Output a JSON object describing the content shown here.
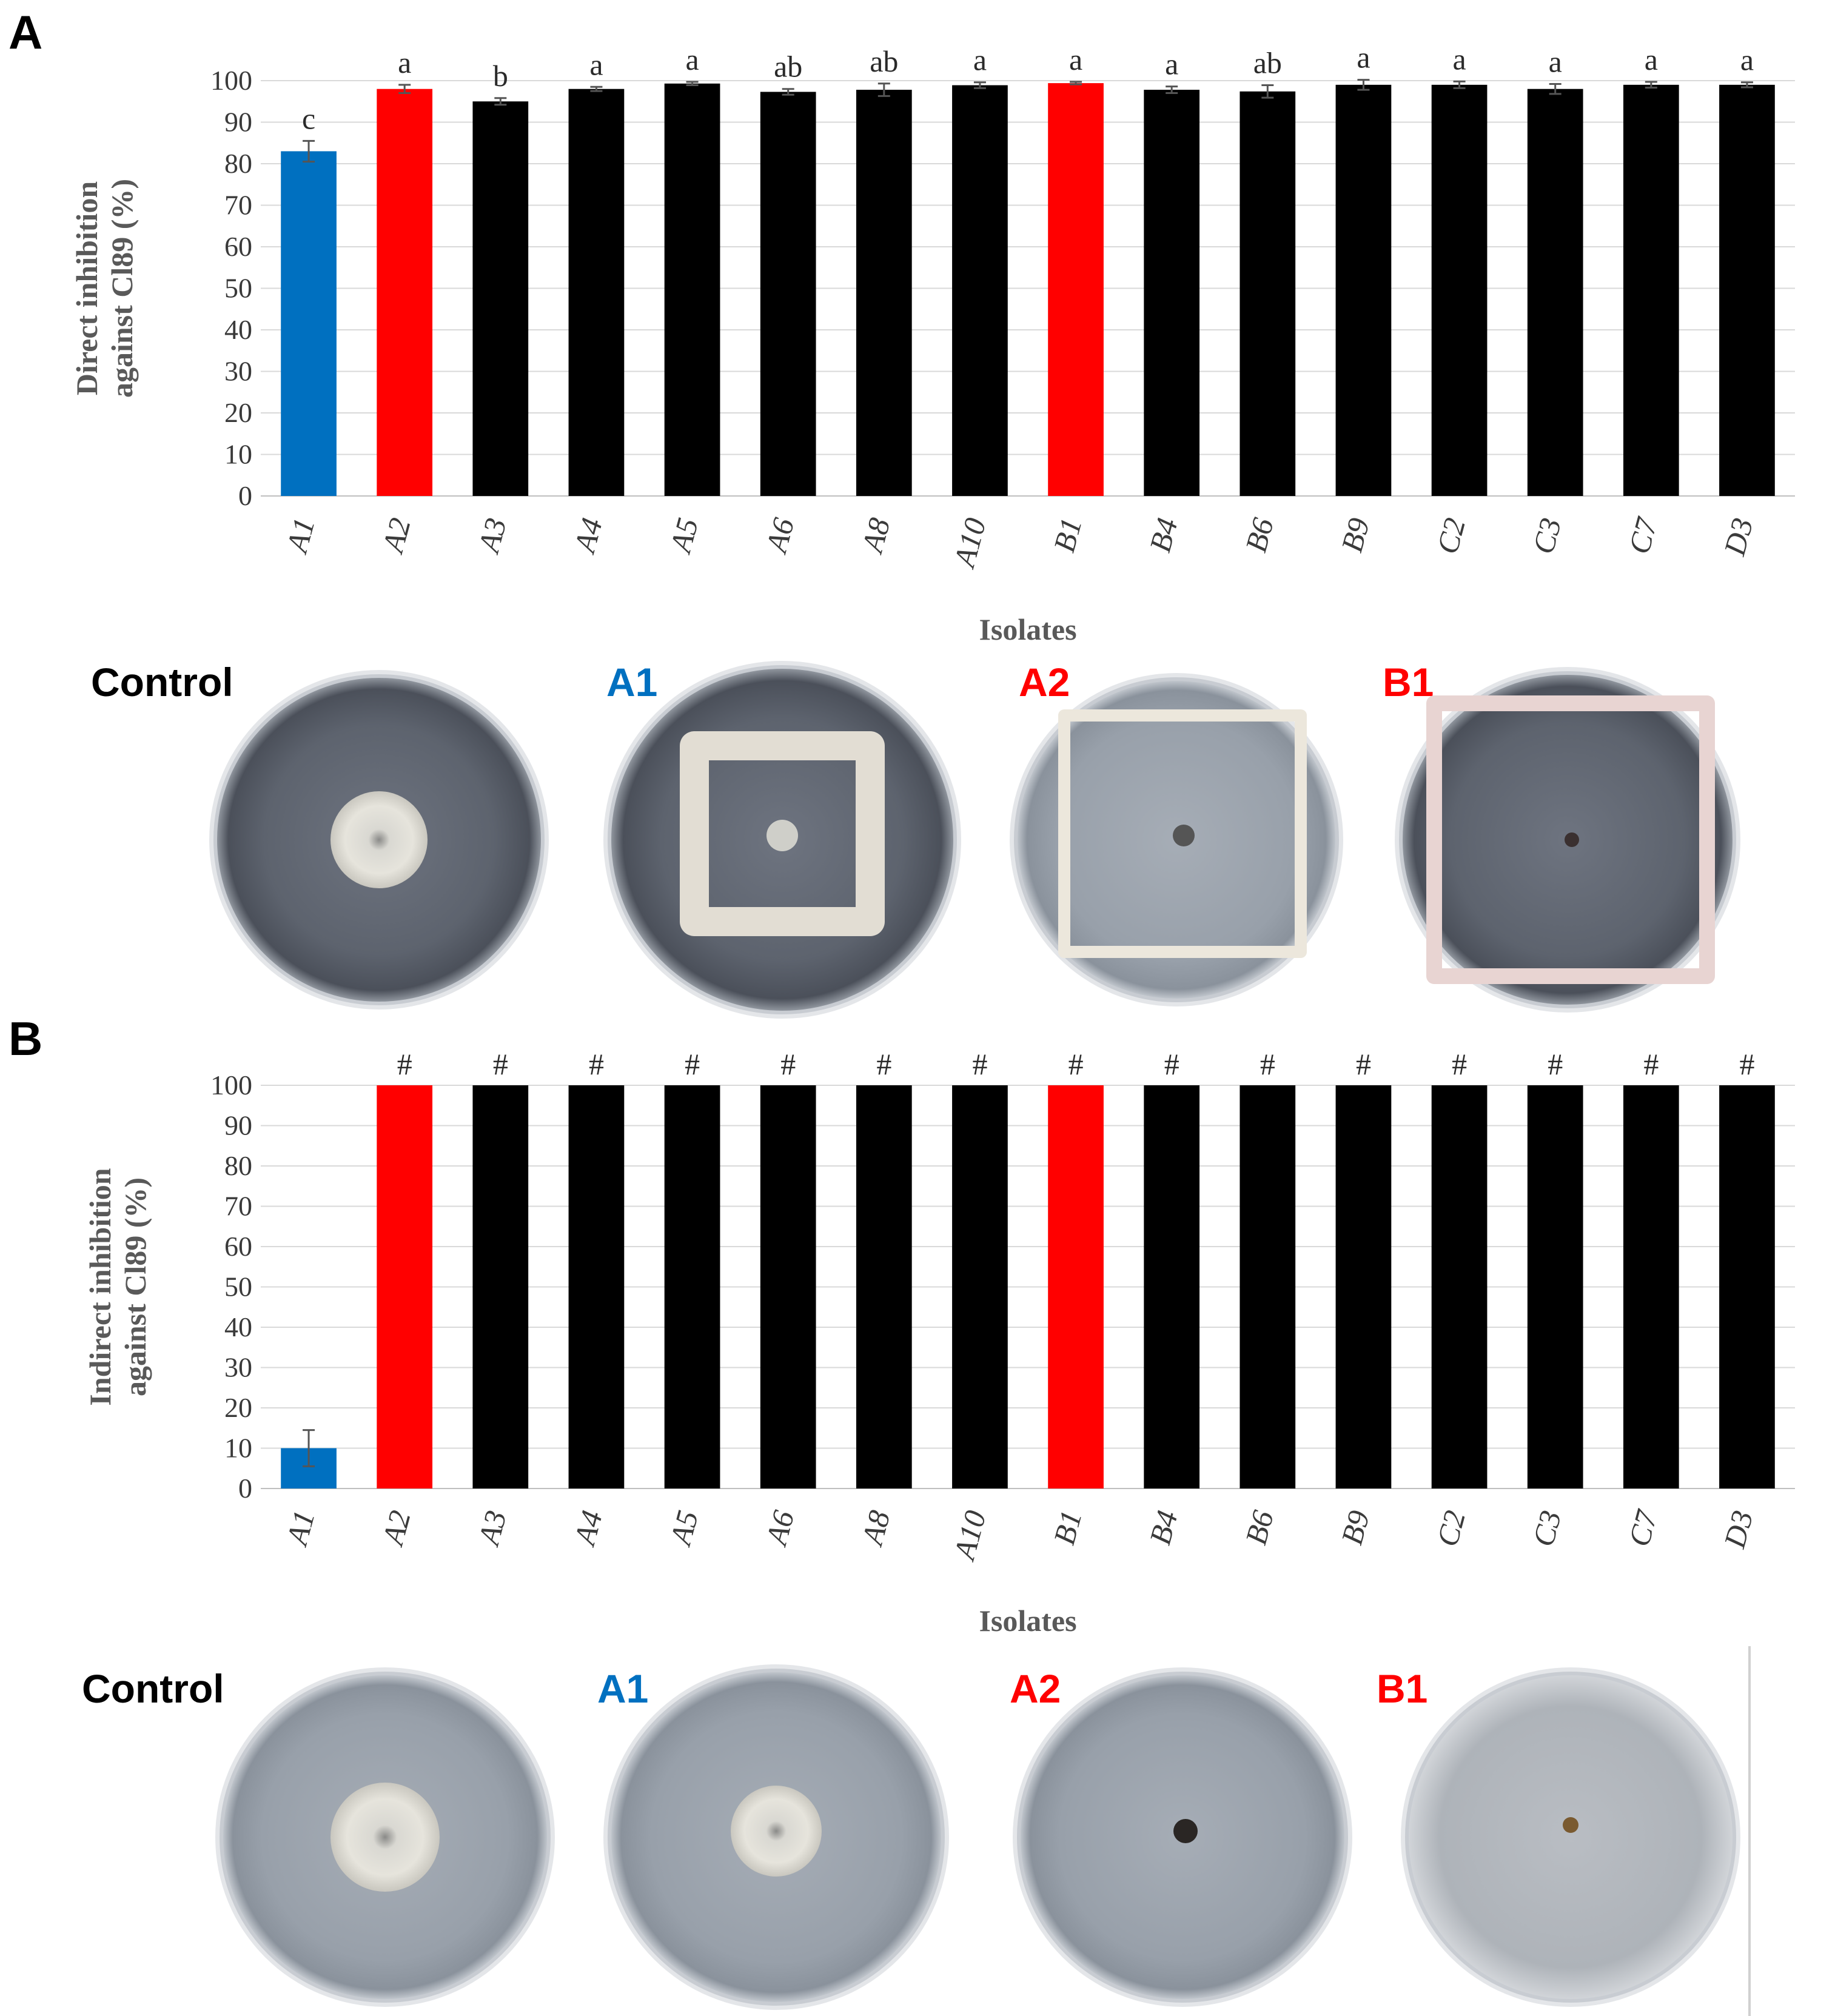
{
  "colors": {
    "blue": "#0070c0",
    "red": "#ff0000",
    "black": "#000000"
  },
  "panels": [
    {
      "letter": "A",
      "photo_labels": [
        "Control",
        "A1",
        "A2",
        "B1"
      ],
      "photo_label_colors": [
        "#000000",
        "#0070c0",
        "#ff0000",
        "#ff0000"
      ]
    },
    {
      "letter": "B",
      "photo_labels": [
        "Control",
        "A1",
        "A2",
        "B1"
      ],
      "photo_label_colors": [
        "#000000",
        "#0070c0",
        "#ff0000",
        "#ff0000"
      ]
    }
  ],
  "chart_data": [
    {
      "type": "bar",
      "ylabel_line1": "Direct inhibition",
      "ylabel_line2": "against Cl89 (%)",
      "xlabel": "Isolates",
      "ylim": [
        0,
        100
      ],
      "yticks": [
        0,
        10,
        20,
        30,
        40,
        50,
        60,
        70,
        80,
        90,
        100
      ],
      "grid": true,
      "categories": [
        "A1",
        "A2",
        "A3",
        "A4",
        "A5",
        "A6",
        "A8",
        "A10",
        "B1",
        "B4",
        "B6",
        "B9",
        "C2",
        "C3",
        "C7",
        "D3"
      ],
      "values": [
        83,
        98,
        95,
        98,
        99.3,
        97.3,
        97.8,
        98.9,
        99.4,
        97.8,
        97.4,
        99,
        99,
        98,
        99,
        99
      ],
      "errors": [
        2.5,
        1,
        0.8,
        0.5,
        0.4,
        0.7,
        1.5,
        0.7,
        0.3,
        0.8,
        1.5,
        1.2,
        0.8,
        1.2,
        0.7,
        0.6
      ],
      "labels": [
        "c",
        "a",
        "b",
        "a",
        "a",
        "ab",
        "ab",
        "a",
        "a",
        "a",
        "ab",
        "a",
        "a",
        "a",
        "a",
        "a"
      ],
      "bar_colors": [
        "#0070c0",
        "#ff0000",
        "#000000",
        "#000000",
        "#000000",
        "#000000",
        "#000000",
        "#000000",
        "#ff0000",
        "#000000",
        "#000000",
        "#000000",
        "#000000",
        "#000000",
        "#000000",
        "#000000"
      ]
    },
    {
      "type": "bar",
      "ylabel_line1": "Indirect inhibition",
      "ylabel_line2": "against Cl89 (%)",
      "xlabel": "Isolates",
      "ylim": [
        0,
        100
      ],
      "yticks": [
        0,
        10,
        20,
        30,
        40,
        50,
        60,
        70,
        80,
        90,
        100
      ],
      "grid": true,
      "categories": [
        "A1",
        "A2",
        "A3",
        "A4",
        "A5",
        "A6",
        "A8",
        "A10",
        "B1",
        "B4",
        "B6",
        "B9",
        "C2",
        "C3",
        "C7",
        "D3"
      ],
      "values": [
        10,
        100,
        100,
        100,
        100,
        100,
        100,
        100,
        100,
        100,
        100,
        100,
        100,
        100,
        100,
        100
      ],
      "errors": [
        4.5,
        0,
        0,
        0,
        0,
        0,
        0,
        0,
        0,
        0,
        0,
        0,
        0,
        0,
        0,
        0
      ],
      "labels": [
        "",
        "#",
        "#",
        "#",
        "#",
        "#",
        "#",
        "#",
        "#",
        "#",
        "#",
        "#",
        "#",
        "#",
        "#",
        "#"
      ],
      "bar_colors": [
        "#0070c0",
        "#ff0000",
        "#000000",
        "#000000",
        "#000000",
        "#000000",
        "#000000",
        "#000000",
        "#ff0000",
        "#000000",
        "#000000",
        "#000000",
        "#000000",
        "#000000",
        "#000000",
        "#000000"
      ]
    }
  ]
}
